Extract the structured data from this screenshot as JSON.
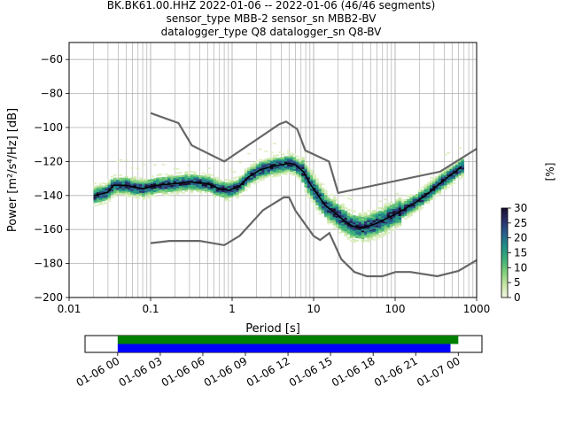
{
  "chart_data": {
    "type": "heatmap",
    "title_lines": [
      "BK.BK61.00.HHZ   2022-01-06 -- 2022-01-06  (46/46 segments)",
      "sensor_type MBB-2 sensor_sn MBB2-BV",
      "datalogger_type Q8 datalogger_sn Q8-BV"
    ],
    "xlabel": "Period [s]",
    "ylabel": "Power [m²/s⁴/Hz] [dB]",
    "xscale": "log",
    "xlim": [
      0.01,
      1000
    ],
    "ylim": [
      -200,
      -50
    ],
    "x_ticks": [
      {
        "value": 0.01,
        "label": "0.01"
      },
      {
        "value": 0.1,
        "label": "0.1"
      },
      {
        "value": 1,
        "label": "1"
      },
      {
        "value": 10,
        "label": "10"
      },
      {
        "value": 100,
        "label": "100"
      },
      {
        "value": 1000,
        "label": "1000"
      }
    ],
    "y_ticks": [
      -60,
      -80,
      -100,
      -120,
      -140,
      -160,
      -180,
      -200
    ],
    "grid": true,
    "colorbar": {
      "label": "[%]",
      "min": 0,
      "max": 30,
      "ticks": [
        0,
        5,
        10,
        15,
        20,
        25,
        30
      ],
      "colors": [
        "#f3f8e4",
        "#c8e6a4",
        "#7fcf7a",
        "#3cb07a",
        "#1f8f86",
        "#2a5f8f",
        "#2b2f6a",
        "#1a0c2e"
      ]
    },
    "noise_models": {
      "color": "#666666",
      "high": {
        "period": [
          0.1,
          0.22,
          0.32,
          0.8,
          3.8,
          4.6,
          6.3,
          7.9,
          15.4,
          20,
          354.8,
          1000
        ],
        "power": [
          -91.5,
          -97.4,
          -110.5,
          -120.0,
          -98.0,
          -96.5,
          -101.0,
          -113.5,
          -120.0,
          -138.5,
          -126.0,
          -112.5
        ]
      },
      "low": {
        "period": [
          0.1,
          0.17,
          0.4,
          0.8,
          1.24,
          2.4,
          4.3,
          5.0,
          6.0,
          10.0,
          12.0,
          15.6,
          21.9,
          31.6,
          45,
          70,
          101,
          154,
          328,
          600,
          1000
        ],
        "power": [
          -168.0,
          -166.7,
          -166.7,
          -169.2,
          -163.7,
          -148.6,
          -141.1,
          -141.1,
          -149.0,
          -163.8,
          -166.2,
          -162.1,
          -177.5,
          -185.0,
          -187.5,
          -187.5,
          -185.0,
          -185.0,
          -187.5,
          -184.4,
          -178.0
        ]
      }
    },
    "mode": {
      "color": "#000000",
      "period": [
        0.02,
        0.025,
        0.03,
        0.035,
        0.05,
        0.08,
        0.12,
        0.2,
        0.3,
        0.5,
        0.7,
        0.9,
        1.2,
        1.6,
        2.2,
        3,
        4,
        5,
        6,
        7.5,
        9,
        11,
        14,
        18,
        24,
        30,
        40,
        55,
        75,
        100,
        130,
        180,
        250,
        350,
        450,
        550,
        650
      ],
      "power": [
        -140,
        -139,
        -138,
        -134,
        -134,
        -136,
        -134,
        -133,
        -132,
        -133,
        -136,
        -137,
        -135,
        -129,
        -125,
        -123,
        -122,
        -121,
        -122,
        -126,
        -133,
        -139,
        -146,
        -150,
        -155,
        -158,
        -159,
        -157,
        -154,
        -151,
        -148,
        -144,
        -139,
        -133,
        -129,
        -126,
        -123
      ]
    },
    "time_coverage": {
      "x_tick_labels": [
        "01-06 00",
        "01-06 03",
        "01-06 06",
        "01-06 09",
        "01-06 12",
        "01-06 15",
        "01-06 18",
        "01-06 21",
        "01-07 00"
      ],
      "range_start": "01-05 21:42",
      "range_end": "01-07 01:40",
      "bars": [
        {
          "color": "#008000",
          "start": "01-06 00:00",
          "end": "01-07 00:00"
        },
        {
          "color": "#0000ff",
          "start": "01-06 00:00",
          "end": "01-06 23:27"
        }
      ]
    }
  }
}
